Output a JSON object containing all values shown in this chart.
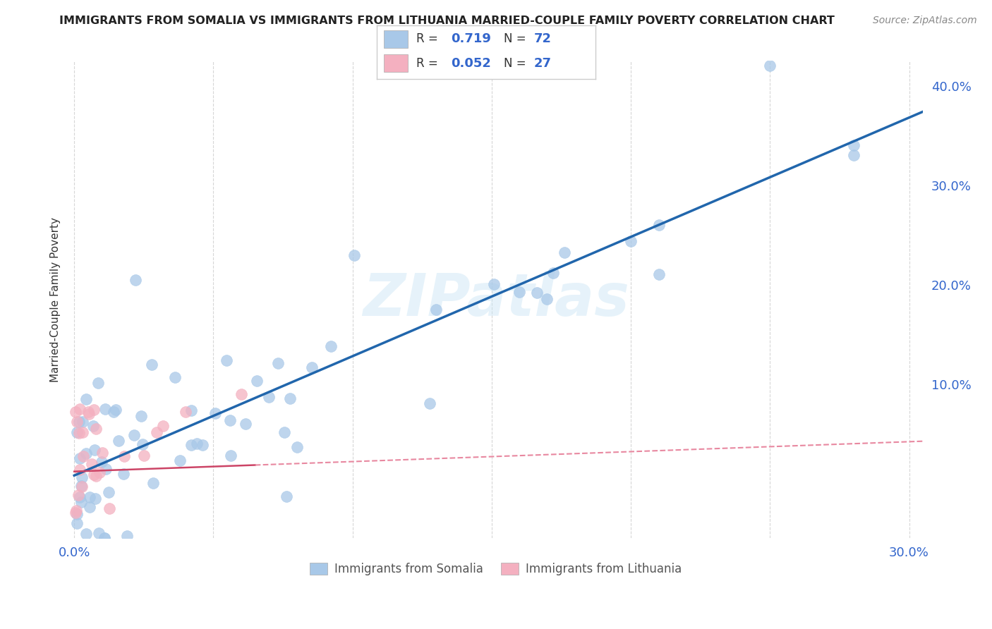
{
  "title": "IMMIGRANTS FROM SOMALIA VS IMMIGRANTS FROM LITHUANIA MARRIED-COUPLE FAMILY POVERTY CORRELATION CHART",
  "source": "Source: ZipAtlas.com",
  "ylabel": "Married-Couple Family Poverty",
  "R_somalia": 0.719,
  "N_somalia": 72,
  "R_lithuania": 0.052,
  "N_lithuania": 27,
  "somalia_color": "#a8c8e8",
  "somalia_line_color": "#2166ac",
  "lithuania_color": "#f4b0c0",
  "lithuania_line_color": "#cc4466",
  "lithuania_line_color_dash": "#e888a0",
  "background_color": "#ffffff",
  "grid_color": "#cccccc",
  "watermark": "ZIPatlas",
  "xlim": [
    -0.002,
    0.305
  ],
  "ylim": [
    -0.055,
    0.425
  ],
  "xtick_positions": [
    0.0,
    0.05,
    0.1,
    0.15,
    0.2,
    0.25,
    0.3
  ],
  "ytick_positions": [
    0.0,
    0.1,
    0.2,
    0.3,
    0.4
  ],
  "title_fontsize": 11.5,
  "source_fontsize": 10,
  "tick_fontsize": 13,
  "ylabel_fontsize": 11
}
